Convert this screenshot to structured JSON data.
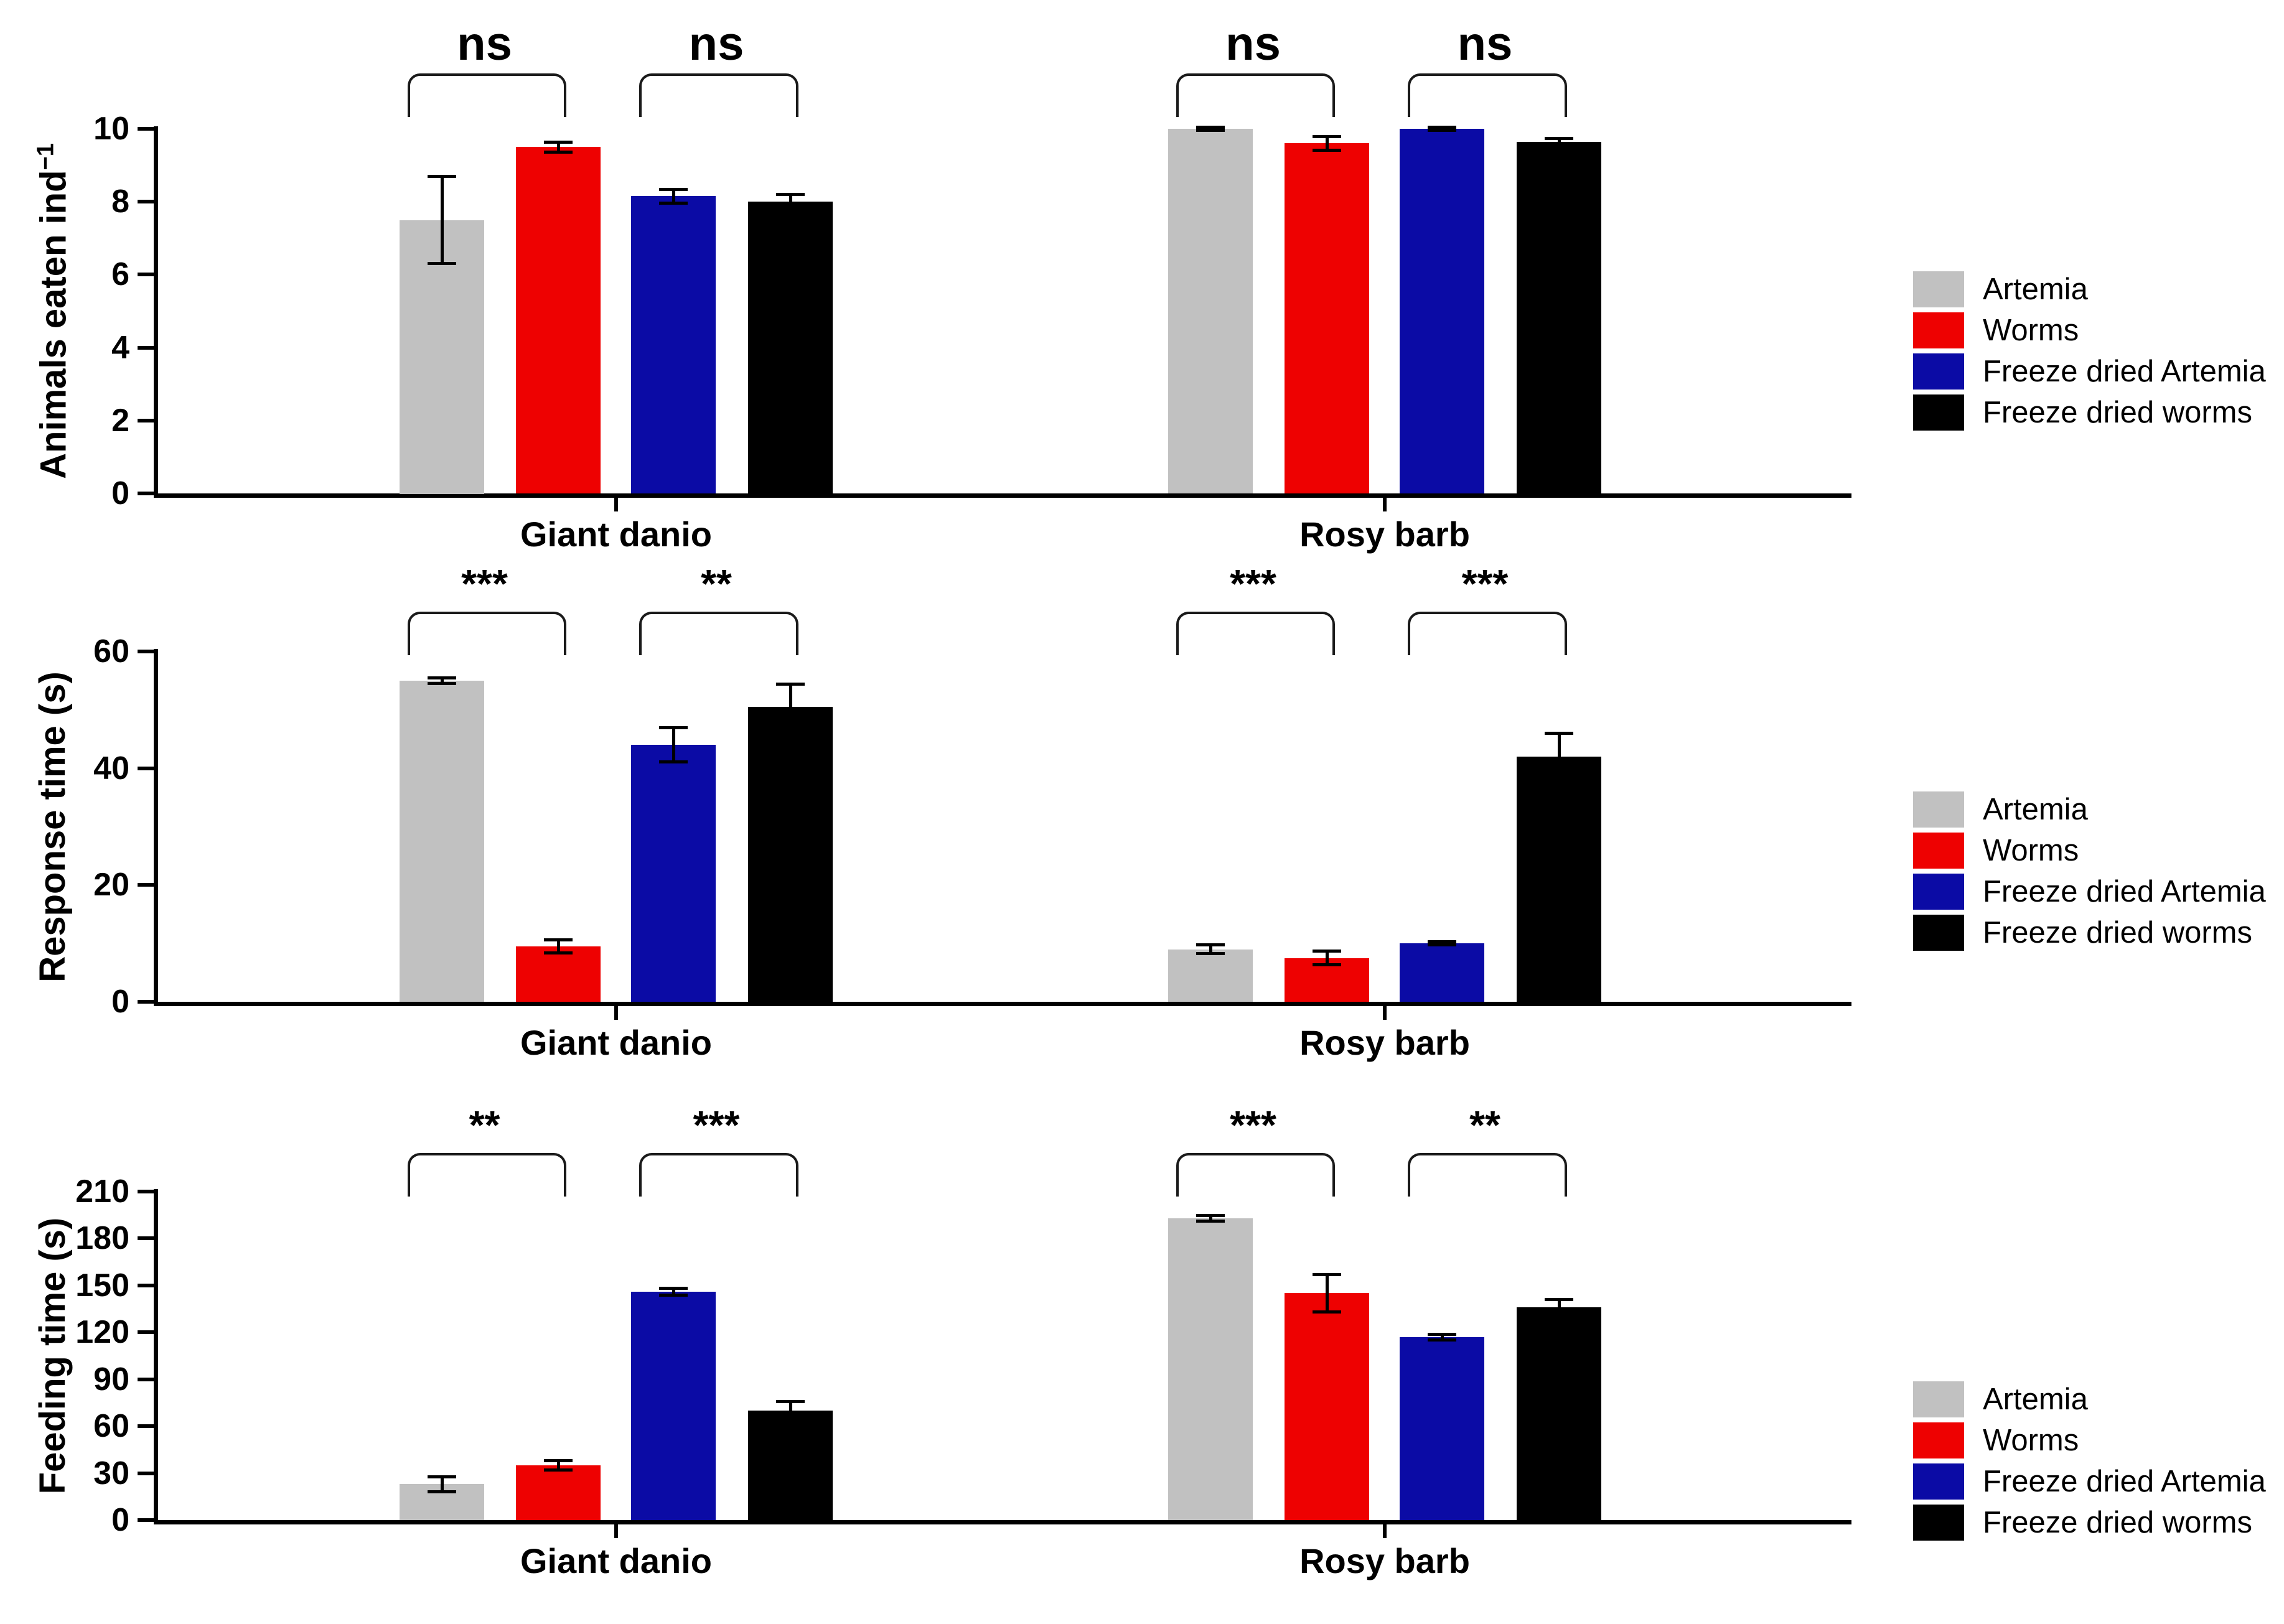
{
  "legend": {
    "position": "right",
    "entries": [
      {
        "label": "Artemia",
        "color": "#c1c1c1"
      },
      {
        "label": "Worms",
        "color": "#ee0101"
      },
      {
        "label": "Freeze dried Artemia",
        "color": "#0b0ba5"
      },
      {
        "label": "Freeze dried worms",
        "color": "#000000"
      }
    ]
  },
  "chart_data": [
    {
      "type": "bar",
      "ylabel": "Animals eaten  ind",
      "ylabel_superscript": "−1",
      "ylim": [
        0,
        10
      ],
      "yticks": [
        0,
        2,
        4,
        6,
        8,
        10
      ],
      "grid": false,
      "legend_position": "right",
      "categories": [
        "Giant danio",
        "Rosy barb"
      ],
      "series": [
        "Artemia",
        "Worms",
        "Freeze dried Artemia",
        "Freeze dried worms"
      ],
      "groups": [
        {
          "category": "Giant danio",
          "values": [
            7.5,
            9.5,
            8.15,
            8.0
          ],
          "errors": [
            1.2,
            0.15,
            0.2,
            0.2
          ],
          "significance": [
            {
              "pair": [
                0,
                1
              ],
              "label": "ns"
            },
            {
              "pair": [
                2,
                3
              ],
              "label": "ns"
            }
          ]
        },
        {
          "category": "Rosy barb",
          "values": [
            10.0,
            9.6,
            10.0,
            9.65
          ],
          "errors": [
            0.05,
            0.2,
            0.05,
            0.1
          ],
          "significance": [
            {
              "pair": [
                0,
                1
              ],
              "label": "ns"
            },
            {
              "pair": [
                2,
                3
              ],
              "label": "ns"
            }
          ]
        }
      ]
    },
    {
      "type": "bar",
      "ylabel": "Response time (s)",
      "ylabel_superscript": "",
      "ylim": [
        0,
        60
      ],
      "yticks": [
        0,
        20,
        40,
        60
      ],
      "grid": false,
      "legend_position": "right",
      "categories": [
        "Giant danio",
        "Rosy barb"
      ],
      "series": [
        "Artemia",
        "Worms",
        "Freeze dried Artemia",
        "Freeze dried worms"
      ],
      "groups": [
        {
          "category": "Giant danio",
          "values": [
            55,
            9.5,
            44,
            50.5
          ],
          "errors": [
            0.5,
            1.2,
            3,
            4
          ],
          "significance": [
            {
              "pair": [
                0,
                1
              ],
              "label": "***"
            },
            {
              "pair": [
                2,
                3
              ],
              "label": "**"
            }
          ]
        },
        {
          "category": "Rosy barb",
          "values": [
            9,
            7.5,
            10,
            42
          ],
          "errors": [
            0.8,
            1.2,
            0.3,
            4
          ],
          "significance": [
            {
              "pair": [
                0,
                1
              ],
              "label": "***"
            },
            {
              "pair": [
                2,
                3
              ],
              "label": "***"
            }
          ]
        }
      ]
    },
    {
      "type": "bar",
      "ylabel": "Feeding time (s)",
      "ylabel_superscript": "",
      "ylim": [
        0,
        210
      ],
      "yticks": [
        0,
        30,
        60,
        90,
        120,
        150,
        180,
        210
      ],
      "grid": false,
      "legend_position": "right",
      "categories": [
        "Giant danio",
        "Rosy barb"
      ],
      "series": [
        "Artemia",
        "Worms",
        "Freeze dried Artemia",
        "Freeze dried worms"
      ],
      "groups": [
        {
          "category": "Giant danio",
          "values": [
            23,
            35,
            146,
            70
          ],
          "errors": [
            5,
            3,
            2.5,
            6
          ],
          "significance": [
            {
              "pair": [
                0,
                1
              ],
              "label": "**"
            },
            {
              "pair": [
                2,
                3
              ],
              "label": "***"
            }
          ]
        },
        {
          "category": "Rosy barb",
          "values": [
            193,
            145,
            117,
            136
          ],
          "errors": [
            2,
            12,
            2,
            5
          ],
          "significance": [
            {
              "pair": [
                0,
                1
              ],
              "label": "***"
            },
            {
              "pair": [
                2,
                3
              ],
              "label": "**"
            }
          ]
        }
      ]
    }
  ]
}
